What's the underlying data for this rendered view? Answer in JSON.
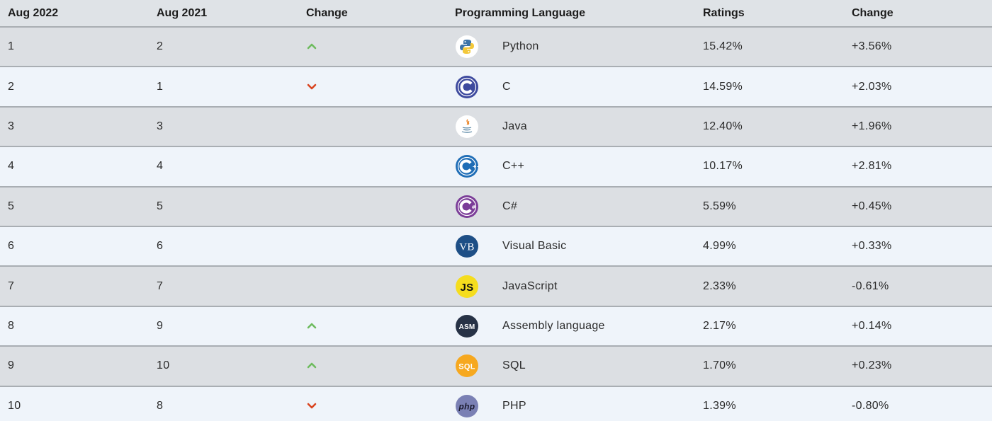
{
  "headers": {
    "current": "Aug 2022",
    "previous": "Aug 2021",
    "change": "Change",
    "language": "Programming Language",
    "ratings": "Ratings",
    "rating_change": "Change"
  },
  "colors": {
    "up": "#6dbb5e",
    "down": "#d9441f"
  },
  "rows": [
    {
      "current": "1",
      "previous": "2",
      "trend": "up",
      "icon": "python-logo-icon",
      "language": "Python",
      "rating": "15.42%",
      "change": "+3.56%"
    },
    {
      "current": "2",
      "previous": "1",
      "trend": "down",
      "icon": "c-logo-icon",
      "language": "C",
      "rating": "14.59%",
      "change": "+2.03%"
    },
    {
      "current": "3",
      "previous": "3",
      "trend": "none",
      "icon": "java-logo-icon",
      "language": "Java",
      "rating": "12.40%",
      "change": "+1.96%"
    },
    {
      "current": "4",
      "previous": "4",
      "trend": "none",
      "icon": "cpp-logo-icon",
      "language": "C++",
      "rating": "10.17%",
      "change": "+2.81%"
    },
    {
      "current": "5",
      "previous": "5",
      "trend": "none",
      "icon": "csharp-logo-icon",
      "language": "C#",
      "rating": "5.59%",
      "change": "+0.45%"
    },
    {
      "current": "6",
      "previous": "6",
      "trend": "none",
      "icon": "visual-basic-logo-icon",
      "logo_text": "VB",
      "language": "Visual Basic",
      "rating": "4.99%",
      "change": "+0.33%"
    },
    {
      "current": "7",
      "previous": "7",
      "trend": "none",
      "icon": "javascript-logo-icon",
      "logo_text": "JS",
      "language": "JavaScript",
      "rating": "2.33%",
      "change": "-0.61%"
    },
    {
      "current": "8",
      "previous": "9",
      "trend": "up",
      "icon": "assembly-logo-icon",
      "logo_text": "ASM",
      "language": "Assembly language",
      "rating": "2.17%",
      "change": "+0.14%"
    },
    {
      "current": "9",
      "previous": "10",
      "trend": "up",
      "icon": "sql-logo-icon",
      "logo_text": "SQL",
      "language": "SQL",
      "rating": "1.70%",
      "change": "+0.23%"
    },
    {
      "current": "10",
      "previous": "8",
      "trend": "down",
      "icon": "php-logo-icon",
      "logo_text": "php",
      "language": "PHP",
      "rating": "1.39%",
      "change": "-0.80%"
    }
  ]
}
